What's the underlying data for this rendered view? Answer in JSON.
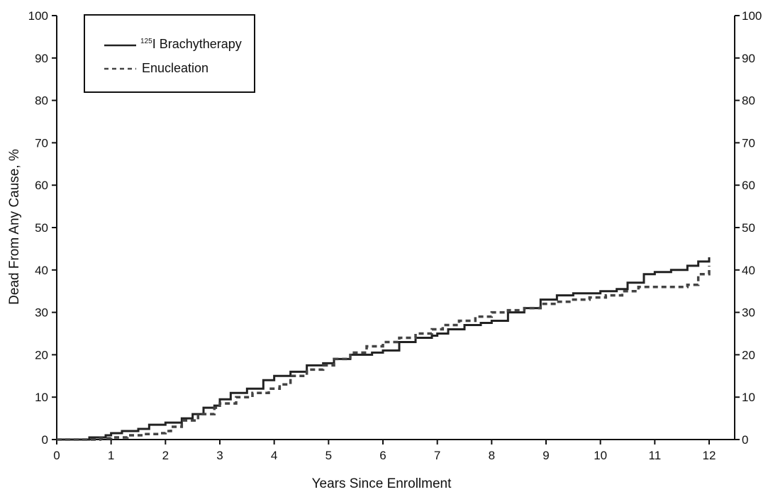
{
  "chart_data": {
    "type": "line",
    "xlabel": "Years Since Enrollment",
    "ylabel": "Dead From Any Cause, %",
    "xlim": [
      0,
      12
    ],
    "ylim": [
      0,
      100
    ],
    "x_ticks": [
      "0",
      "1",
      "2",
      "3",
      "4",
      "5",
      "6",
      "7",
      "8",
      "9",
      "10",
      "11",
      "12"
    ],
    "y_ticks": [
      "0",
      "10",
      "20",
      "30",
      "40",
      "50",
      "60",
      "70",
      "80",
      "90",
      "100"
    ],
    "right_axis_ticks": [
      "0",
      "10",
      "20",
      "30",
      "40",
      "50",
      "60",
      "70",
      "80",
      "90",
      "100"
    ],
    "grid": false,
    "legend_position": "top-left",
    "series": [
      {
        "name": "125I Brachytherapy",
        "legend_superscript": "125",
        "legend_text": "I Brachytherapy",
        "style": "solid",
        "color": "#222222",
        "points": [
          [
            0,
            0
          ],
          [
            0.3,
            0
          ],
          [
            0.6,
            0.5
          ],
          [
            0.9,
            1
          ],
          [
            1,
            1.5
          ],
          [
            1.2,
            2
          ],
          [
            1.5,
            2.5
          ],
          [
            1.7,
            3.5
          ],
          [
            2,
            4
          ],
          [
            2.3,
            5
          ],
          [
            2.5,
            6
          ],
          [
            2.7,
            7.5
          ],
          [
            2.9,
            8
          ],
          [
            3,
            9.5
          ],
          [
            3.2,
            11
          ],
          [
            3.5,
            12
          ],
          [
            3.8,
            14
          ],
          [
            4,
            15
          ],
          [
            4.3,
            16
          ],
          [
            4.6,
            17.5
          ],
          [
            4.9,
            18
          ],
          [
            5.1,
            19
          ],
          [
            5.4,
            20
          ],
          [
            5.8,
            20.5
          ],
          [
            6,
            21
          ],
          [
            6.3,
            23
          ],
          [
            6.6,
            24
          ],
          [
            6.9,
            24.5
          ],
          [
            7,
            25
          ],
          [
            7.2,
            26
          ],
          [
            7.5,
            27
          ],
          [
            7.8,
            27.5
          ],
          [
            8,
            28
          ],
          [
            8.3,
            30
          ],
          [
            8.6,
            31
          ],
          [
            8.9,
            33
          ],
          [
            9.2,
            34
          ],
          [
            9.5,
            34.5
          ],
          [
            9.8,
            34.5
          ],
          [
            10,
            35
          ],
          [
            10.3,
            35.5
          ],
          [
            10.5,
            37
          ],
          [
            10.8,
            39
          ],
          [
            11,
            39.5
          ],
          [
            11.3,
            40
          ],
          [
            11.6,
            41
          ],
          [
            11.8,
            42
          ],
          [
            12,
            43
          ]
        ]
      },
      {
        "name": "Enucleation",
        "style": "dashed",
        "color": "#444444",
        "points": [
          [
            0,
            0
          ],
          [
            0.5,
            0
          ],
          [
            0.8,
            0.3
          ],
          [
            1,
            0.5
          ],
          [
            1.3,
            1
          ],
          [
            1.6,
            1.3
          ],
          [
            1.9,
            1.5
          ],
          [
            2,
            2
          ],
          [
            2.1,
            3
          ],
          [
            2.3,
            4.5
          ],
          [
            2.6,
            6
          ],
          [
            2.9,
            7.5
          ],
          [
            3,
            8.5
          ],
          [
            3.3,
            10
          ],
          [
            3.6,
            11
          ],
          [
            3.9,
            12
          ],
          [
            4.1,
            13
          ],
          [
            4.3,
            15
          ],
          [
            4.6,
            16.5
          ],
          [
            4.9,
            17.5
          ],
          [
            5.1,
            19
          ],
          [
            5.4,
            20.5
          ],
          [
            5.7,
            22
          ],
          [
            6,
            23
          ],
          [
            6.3,
            24
          ],
          [
            6.6,
            25
          ],
          [
            6.9,
            26
          ],
          [
            7.1,
            27
          ],
          [
            7.4,
            28
          ],
          [
            7.7,
            29
          ],
          [
            8,
            30
          ],
          [
            8.3,
            30.5
          ],
          [
            8.6,
            31
          ],
          [
            8.9,
            32
          ],
          [
            9.2,
            32.5
          ],
          [
            9.5,
            33
          ],
          [
            9.8,
            33.5
          ],
          [
            10.1,
            34
          ],
          [
            10.4,
            35
          ],
          [
            10.7,
            36
          ],
          [
            11,
            36
          ],
          [
            11.3,
            36
          ],
          [
            11.6,
            36.5
          ],
          [
            11.8,
            39
          ],
          [
            12,
            41
          ]
        ]
      }
    ]
  }
}
